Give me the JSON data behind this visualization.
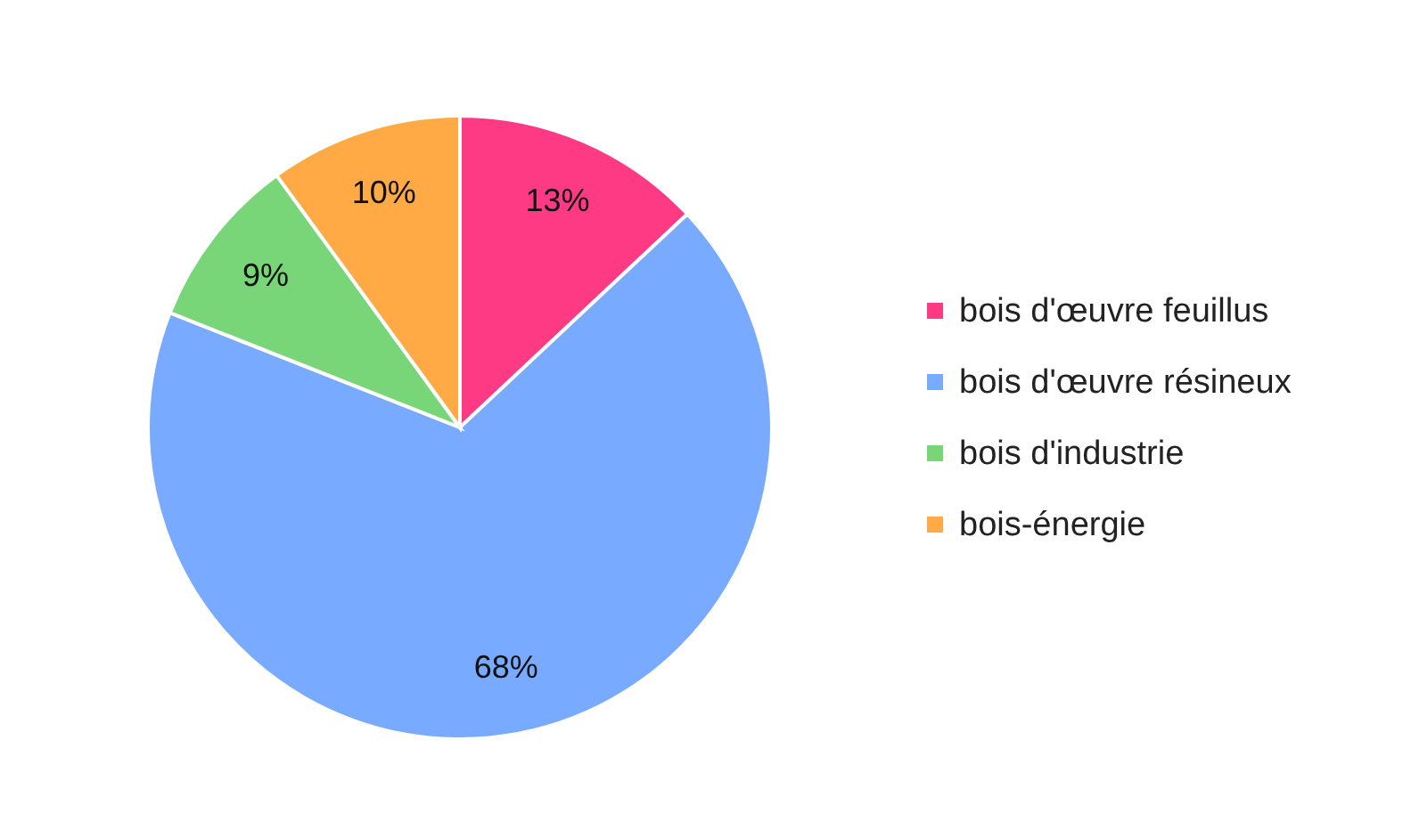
{
  "chart_data": {
    "type": "pie",
    "categories": [
      "bois d'œuvre feuillus",
      "bois d'œuvre résineux",
      "bois d'industrie",
      "bois-énergie"
    ],
    "values": [
      13,
      68,
      9,
      10
    ],
    "value_labels": [
      "13%",
      "68%",
      "9%",
      "10%"
    ],
    "colors": [
      "#ff3a85",
      "#78aaff",
      "#78d678",
      "#ffaa44"
    ],
    "legend": "right"
  }
}
